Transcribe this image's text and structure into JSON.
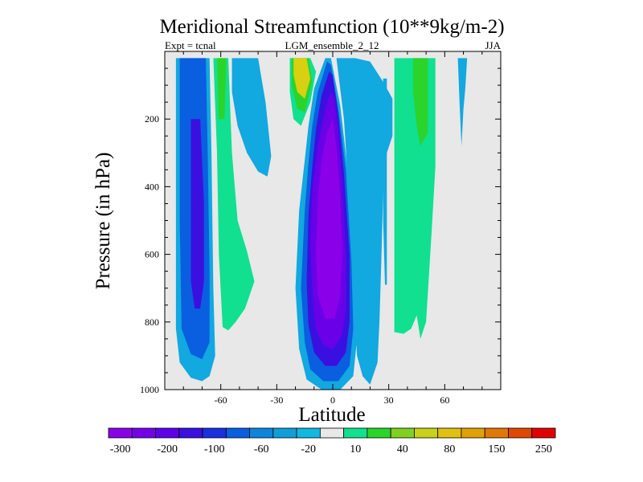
{
  "chart_data": {
    "type": "contour",
    "title": "Meridional Streamfunction (10**9kg/m-2)",
    "subtitle_left": "Expt = tcnal",
    "subtitle_center": "LGM_ensemble_2_12",
    "subtitle_right": "JJA",
    "xlabel": "Latitude",
    "ylabel": "Pressure (in hPa)",
    "xlim": [
      -90,
      90
    ],
    "ylim": [
      1000,
      0
    ],
    "x_ticks": [
      -60,
      -30,
      0,
      30,
      60
    ],
    "y_ticks": [
      200,
      400,
      600,
      800,
      1000
    ],
    "colorbar": {
      "colors": [
        "#8a00e8",
        "#7400e8",
        "#5d00e8",
        "#3a10e0",
        "#1a30e0",
        "#0a5ee0",
        "#0d85dc",
        "#109ed8",
        "#12b8e0",
        "#e8e8e8",
        "#10e090",
        "#2ad42a",
        "#80d020",
        "#c8d018",
        "#e0c010",
        "#e0a008",
        "#e07808",
        "#e04800",
        "#e00000"
      ],
      "tick_labels": [
        "-300",
        "-200",
        "-100",
        "-60",
        "-20",
        "10",
        "40",
        "80",
        "150",
        "250"
      ]
    },
    "regions": [
      {
        "name": "southern-cell-outer",
        "level": -20,
        "polygon": [
          [
            -84,
            20
          ],
          [
            -66,
            20
          ],
          [
            -65,
            300
          ],
          [
            -64,
            700
          ],
          [
            -63,
            900
          ],
          [
            -66,
            960
          ],
          [
            -70,
            975
          ],
          [
            -76,
            965
          ],
          [
            -82,
            920
          ],
          [
            -84,
            820
          ],
          [
            -84,
            500
          ]
        ]
      },
      {
        "name": "southern-cell-mid",
        "level": -60,
        "polygon": [
          [
            -82,
            20
          ],
          [
            -68,
            20
          ],
          [
            -67,
            300
          ],
          [
            -66,
            650
          ],
          [
            -66,
            860
          ],
          [
            -70,
            910
          ],
          [
            -76,
            895
          ],
          [
            -81,
            820
          ],
          [
            -82,
            500
          ]
        ]
      },
      {
        "name": "southern-cell-inner",
        "level": -100,
        "polygon": [
          [
            -76,
            200
          ],
          [
            -71,
            200
          ],
          [
            -69,
            450
          ],
          [
            -69,
            680
          ],
          [
            -71,
            760
          ],
          [
            -74,
            760
          ],
          [
            -76,
            680
          ],
          [
            -76,
            450
          ]
        ]
      },
      {
        "name": "southern-green-band",
        "level": 10,
        "polygon": [
          [
            -64,
            20
          ],
          [
            -56,
            20
          ],
          [
            -54,
            300
          ],
          [
            -51,
            500
          ],
          [
            -46,
            590
          ],
          [
            -42,
            680
          ],
          [
            -47,
            760
          ],
          [
            -52,
            800
          ],
          [
            -56,
            825
          ],
          [
            -59,
            815
          ],
          [
            -61,
            600
          ],
          [
            -62,
            300
          ]
        ]
      },
      {
        "name": "southern-upper-green",
        "level": 40,
        "polygon": [
          [
            -62,
            20
          ],
          [
            -57,
            20
          ],
          [
            -58,
            200
          ],
          [
            -61,
            200
          ]
        ]
      },
      {
        "name": "subtropical-blue-cell",
        "level": -20,
        "polygon": [
          [
            -54,
            20
          ],
          [
            -40,
            20
          ],
          [
            -36,
            150
          ],
          [
            -33,
            310
          ],
          [
            -35,
            370
          ],
          [
            -40,
            355
          ],
          [
            -46,
            300
          ],
          [
            -51,
            220
          ],
          [
            -54,
            120
          ]
        ]
      },
      {
        "name": "upper-green-cell",
        "level": 10,
        "polygon": [
          [
            -23,
            20
          ],
          [
            -12,
            20
          ],
          [
            -9,
            60
          ],
          [
            -12,
            150
          ],
          [
            -17,
            220
          ],
          [
            -21,
            200
          ],
          [
            -23,
            120
          ]
        ]
      },
      {
        "name": "upper-green-inner",
        "level": 40,
        "polygon": [
          [
            -22,
            20
          ],
          [
            -13,
            20
          ],
          [
            -11,
            90
          ],
          [
            -15,
            180
          ],
          [
            -19,
            170
          ],
          [
            -22,
            100
          ]
        ]
      },
      {
        "name": "upper-yellow-inner",
        "level": 80,
        "polygon": [
          [
            -21,
            20
          ],
          [
            -14,
            20
          ],
          [
            -12,
            80
          ],
          [
            -15,
            140
          ],
          [
            -19,
            120
          ],
          [
            -21,
            70
          ]
        ]
      },
      {
        "name": "hadley-cell-L1",
        "level": -20,
        "polygon": [
          [
            -4,
            20
          ],
          [
            -1,
            20
          ],
          [
            4,
            160
          ],
          [
            8,
            350
          ],
          [
            12,
            640
          ],
          [
            13,
            850
          ],
          [
            11,
            960
          ],
          [
            4,
            1000
          ],
          [
            -6,
            1000
          ],
          [
            -14,
            970
          ],
          [
            -18,
            880
          ],
          [
            -20,
            700
          ],
          [
            -18,
            470
          ],
          [
            -15,
            320
          ],
          [
            -13,
            220
          ],
          [
            -10,
            110
          ]
        ]
      },
      {
        "name": "hadley-cell-L2",
        "level": -60,
        "polygon": [
          [
            -3,
            30
          ],
          [
            -1,
            40
          ],
          [
            3,
            170
          ],
          [
            7,
            350
          ],
          [
            10,
            620
          ],
          [
            11,
            820
          ],
          [
            9,
            930
          ],
          [
            3,
            975
          ],
          [
            -5,
            975
          ],
          [
            -12,
            940
          ],
          [
            -15,
            860
          ],
          [
            -17,
            700
          ],
          [
            -15,
            470
          ],
          [
            -13,
            330
          ],
          [
            -11,
            220
          ],
          [
            -8,
            120
          ]
        ]
      },
      {
        "name": "hadley-cell-L3",
        "level": -100,
        "polygon": [
          [
            -2,
            60
          ],
          [
            0,
            70
          ],
          [
            3,
            190
          ],
          [
            6,
            360
          ],
          [
            9,
            600
          ],
          [
            9,
            800
          ],
          [
            7,
            890
          ],
          [
            2,
            930
          ],
          [
            -4,
            930
          ],
          [
            -10,
            890
          ],
          [
            -13,
            810
          ],
          [
            -14,
            680
          ],
          [
            -13,
            480
          ],
          [
            -11,
            340
          ],
          [
            -9,
            230
          ],
          [
            -6,
            130
          ]
        ]
      },
      {
        "name": "hadley-cell-L4",
        "level": -200,
        "polygon": [
          [
            -1,
            120
          ],
          [
            1,
            140
          ],
          [
            3,
            240
          ],
          [
            5,
            380
          ],
          [
            7,
            600
          ],
          [
            7,
            760
          ],
          [
            5,
            840
          ],
          [
            0,
            880
          ],
          [
            -5,
            870
          ],
          [
            -9,
            820
          ],
          [
            -11,
            720
          ],
          [
            -12,
            560
          ],
          [
            -11,
            410
          ],
          [
            -8,
            280
          ],
          [
            -4,
            170
          ]
        ]
      },
      {
        "name": "hadley-cell-L5",
        "level": -300,
        "polygon": [
          [
            0,
            200
          ],
          [
            2,
            280
          ],
          [
            4,
            420
          ],
          [
            5,
            600
          ],
          [
            4,
            720
          ],
          [
            1,
            790
          ],
          [
            -4,
            790
          ],
          [
            -8,
            720
          ],
          [
            -9,
            600
          ],
          [
            -8,
            440
          ],
          [
            -6,
            320
          ],
          [
            -3,
            240
          ]
        ]
      },
      {
        "name": "northern-cyan-cell",
        "level": -20,
        "polygon": [
          [
            2,
            20
          ],
          [
            12,
            20
          ],
          [
            20,
            30
          ],
          [
            27,
            90
          ],
          [
            32,
            140
          ],
          [
            32,
            250
          ],
          [
            29,
            300
          ],
          [
            27,
            420
          ],
          [
            26,
            620
          ],
          [
            25,
            800
          ],
          [
            24,
            920
          ],
          [
            20,
            985
          ],
          [
            16,
            960
          ],
          [
            13,
            900
          ],
          [
            11,
            700
          ],
          [
            9,
            450
          ],
          [
            6,
            200
          ]
        ]
      },
      {
        "name": "northern-thin-strip",
        "level": -20,
        "polygon": [
          [
            27,
            80
          ],
          [
            29,
            80
          ],
          [
            29,
            690
          ],
          [
            28,
            690
          ],
          [
            27,
            500
          ]
        ]
      },
      {
        "name": "northern-green-band",
        "level": 10,
        "polygon": [
          [
            33,
            20
          ],
          [
            55,
            20
          ],
          [
            55,
            340
          ],
          [
            53,
            530
          ],
          [
            50,
            800
          ],
          [
            47,
            850
          ],
          [
            45,
            780
          ],
          [
            42,
            820
          ],
          [
            38,
            835
          ],
          [
            33,
            830
          ],
          [
            33,
            430
          ]
        ]
      },
      {
        "name": "northern-green-inner",
        "level": 40,
        "polygon": [
          [
            43,
            20
          ],
          [
            51,
            20
          ],
          [
            51,
            240
          ],
          [
            47,
            280
          ],
          [
            45,
            220
          ],
          [
            43,
            120
          ]
        ]
      },
      {
        "name": "polar-blue-strip",
        "level": -20,
        "polygon": [
          [
            67,
            20
          ],
          [
            72,
            20
          ],
          [
            71,
            110
          ],
          [
            70,
            170
          ],
          [
            69,
            280
          ],
          [
            68,
            160
          ]
        ]
      }
    ]
  }
}
